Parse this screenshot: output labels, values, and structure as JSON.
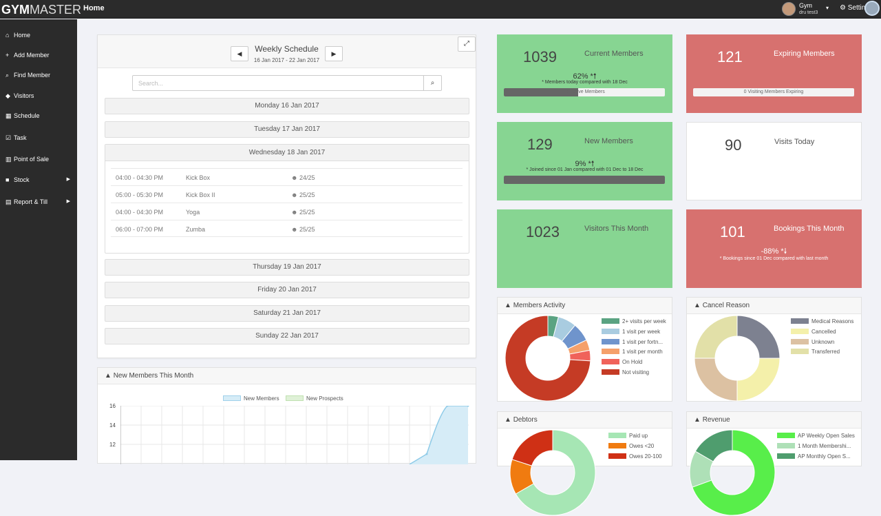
{
  "app": {
    "logo_bold": "GYM",
    "logo_thin": "MASTER",
    "breadcrumb": "Home"
  },
  "user": {
    "name": "Gym",
    "sub": "dru test3",
    "settings": "Settin"
  },
  "sidebar": {
    "items": [
      {
        "icon": "home-icon",
        "glyph": "⌂",
        "label": "Home"
      },
      {
        "icon": "plus-icon",
        "glyph": "+",
        "label": "Add Member"
      },
      {
        "icon": "search-icon",
        "glyph": "⌕",
        "label": "Find Member"
      },
      {
        "icon": "tag-icon",
        "glyph": "◆",
        "label": "Visitors"
      },
      {
        "icon": "calendar-icon",
        "glyph": "▦",
        "label": "Schedule"
      },
      {
        "icon": "checkbox-icon",
        "glyph": "☑",
        "label": "Task"
      },
      {
        "icon": "barcode-icon",
        "glyph": "▥",
        "label": "Point of Sale"
      },
      {
        "icon": "truck-icon",
        "glyph": "■",
        "label": "Stock"
      },
      {
        "icon": "print-icon",
        "glyph": "▤",
        "label": "Report & Till"
      }
    ]
  },
  "schedule": {
    "title": "Weekly Schedule",
    "range": "16 Jan 2017 - 22 Jan 2017",
    "search_placeholder": "Search...",
    "days": [
      "Monday 16 Jan 2017",
      "Tuesday 17 Jan 2017",
      "Wednesday 18 Jan 2017",
      "Thursday 19 Jan 2017",
      "Friday 20 Jan 2017",
      "Saturday 21 Jan 2017",
      "Sunday 22 Jan 2017"
    ],
    "classes": [
      {
        "time": "04:00 - 04:30 PM",
        "name": "Kick Box",
        "cap": "24/25"
      },
      {
        "time": "05:00 - 05:30 PM",
        "name": "Kick Box II",
        "cap": "25/25"
      },
      {
        "time": "04:00 - 04:30 PM",
        "name": "Yoga",
        "cap": "25/25"
      },
      {
        "time": "06:00 - 07:00 PM",
        "name": "Zumba",
        "cap": "25/25"
      }
    ]
  },
  "stats": {
    "current": {
      "value": "1039",
      "label": "Current Members",
      "pct": "62% *",
      "note": "* Members today compared with 18 Dec",
      "bar": "18 Active Members",
      "bar_fraction": 0.46
    },
    "expiring": {
      "value": "121",
      "label": "Expiring Members",
      "bar": "0 Visiting Members Expiring",
      "bar_fraction": 0
    },
    "new": {
      "value": "129",
      "label": "New Members",
      "pct": "9% *",
      "note": "* Joined since 01 Jan compared with 01 Dec to 18 Dec",
      "bar_fraction": 1
    },
    "visits": {
      "value": "90",
      "label": "Visits Today"
    },
    "visitors": {
      "value": "1023",
      "label": "Visitors This Month"
    },
    "bookings": {
      "value": "101",
      "label": "Bookings This Month",
      "pct": "-88% *",
      "note": "* Bookings since 01 Dec compared with last month"
    }
  },
  "colors": {
    "green": "#87d592",
    "red": "#d7716f"
  },
  "members_activity": {
    "title": "Members Activity"
  },
  "cancel_reason": {
    "title": "Cancel Reason"
  },
  "debtors": {
    "title": "Debtors"
  },
  "revenue": {
    "title": "Revenue"
  },
  "new_members_month": {
    "title": "New Members This Month"
  },
  "chart_data": [
    {
      "type": "pie",
      "title": "Members Activity",
      "labels": [
        "2+ visits per week",
        "1 visit per week",
        "1 visit per fortn...",
        "1 visit per month",
        "On Hold",
        "Not visiting"
      ],
      "values": [
        4,
        7,
        7,
        4,
        4,
        74
      ],
      "colors": [
        "#5aa382",
        "#a9cce0",
        "#6f94cc",
        "#f5a06a",
        "#f0625a",
        "#c53b25"
      ]
    },
    {
      "type": "pie",
      "title": "Cancel Reason",
      "labels": [
        "Medical Reasons",
        "Cancelled",
        "Unknown",
        "Transferred"
      ],
      "values": [
        25,
        25,
        25,
        25
      ],
      "colors": [
        "#7d8190",
        "#f4f0aa",
        "#dcc1a2",
        "#e2e0a8"
      ]
    },
    {
      "type": "pie",
      "title": "Debtors",
      "labels": [
        "Paid up",
        "Owes <20",
        "Owes 20-100"
      ],
      "values": [
        50,
        10,
        15
      ],
      "colors": [
        "#a6e6b4",
        "#f07b10",
        "#cf3015"
      ]
    },
    {
      "type": "pie",
      "title": "Revenue",
      "labels": [
        "AP Weekly Open Sales",
        "1 Month Membershi...",
        "AP Monthly Open S..."
      ],
      "values": [
        50,
        10,
        12
      ],
      "colors": [
        "#58ee4a",
        "#aee0b7",
        "#4f9d6e"
      ]
    },
    {
      "type": "line",
      "title": "New Members This Month",
      "series": [
        {
          "name": "New Members"
        },
        {
          "name": "New Prospects"
        }
      ],
      "yticks": [
        "16",
        "14",
        "12"
      ]
    }
  ]
}
